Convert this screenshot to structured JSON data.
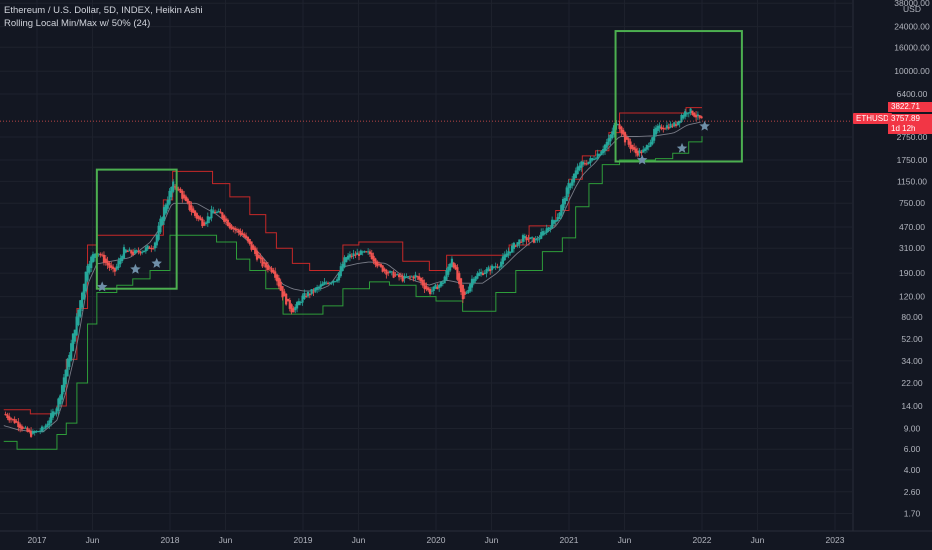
{
  "header": {
    "title": "Ethereum / U.S. Dollar, 5D, INDEX, Heikin Ashi",
    "indicator": "Rolling Local Min/Max w/ 50% (24)"
  },
  "price_axis": {
    "currency": "USD",
    "symbol_badge": "ETHUSD",
    "last_price": "3822.71",
    "current_price": "3757.89",
    "countdown": "1d 12h",
    "badge_color": "#f23645"
  },
  "colors": {
    "background": "#131722",
    "up_candle": "#26a69a",
    "down_candle": "#ef5350",
    "max_line": "#c62828",
    "min_line": "#2e9d3a",
    "mid_line": "#787b86",
    "box": "#4caf50",
    "star": "#6f8fa8"
  },
  "chart_data": {
    "type": "candlestick",
    "symbol": "ETHUSD",
    "interval": "5D",
    "scale": "log",
    "y_ticks": [
      1.7,
      2.6,
      4.0,
      6.0,
      9.0,
      14.0,
      22.0,
      34.0,
      52.0,
      80.0,
      120.0,
      190.0,
      310.0,
      470.0,
      750.0,
      1150.0,
      1750.0,
      2750.0,
      6400.0,
      10000.0,
      16000.0,
      24000.0,
      38000.0
    ],
    "y_tick_labels": [
      "1.70",
      "2.60",
      "4.00",
      "6.00",
      "9.00",
      "14.00",
      "22.00",
      "34.00",
      "52.00",
      "80.00",
      "120.00",
      "190.00",
      "310.00",
      "470.00",
      "750.00",
      "1150.00",
      "1750.00",
      "2750.00",
      "6400.00",
      "10000.00",
      "16000.00",
      "24000.00",
      "38000.00"
    ],
    "x_ticks": [
      "2017",
      "Jun",
      "2018",
      "Jun",
      "2019",
      "Jun",
      "2020",
      "Jun",
      "2021",
      "Jun",
      "2022",
      "Jun",
      "2023"
    ],
    "x_tick_dates": [
      2017.0,
      2017.417,
      2018.0,
      2018.417,
      2019.0,
      2019.417,
      2020.0,
      2020.417,
      2021.0,
      2021.417,
      2022.0,
      2022.417,
      2023.0
    ],
    "price_anchors": [
      [
        2016.75,
        12
      ],
      [
        2016.85,
        10
      ],
      [
        2016.95,
        8
      ],
      [
        2017.05,
        9
      ],
      [
        2017.15,
        14
      ],
      [
        2017.22,
        30
      ],
      [
        2017.3,
        80
      ],
      [
        2017.38,
        230
      ],
      [
        2017.45,
        300
      ],
      [
        2017.52,
        230
      ],
      [
        2017.58,
        190
      ],
      [
        2017.65,
        300
      ],
      [
        2017.72,
        280
      ],
      [
        2017.8,
        300
      ],
      [
        2017.88,
        330
      ],
      [
        2017.95,
        650
      ],
      [
        2018.02,
        1100
      ],
      [
        2018.07,
        950
      ],
      [
        2018.12,
        750
      ],
      [
        2018.18,
        600
      ],
      [
        2018.25,
        500
      ],
      [
        2018.32,
        650
      ],
      [
        2018.38,
        600
      ],
      [
        2018.45,
        480
      ],
      [
        2018.55,
        400
      ],
      [
        2018.62,
        300
      ],
      [
        2018.7,
        220
      ],
      [
        2018.78,
        200
      ],
      [
        2018.85,
        120
      ],
      [
        2018.92,
        90
      ],
      [
        2019.0,
        120
      ],
      [
        2019.08,
        135
      ],
      [
        2019.18,
        160
      ],
      [
        2019.25,
        170
      ],
      [
        2019.32,
        260
      ],
      [
        2019.42,
        280
      ],
      [
        2019.5,
        280
      ],
      [
        2019.58,
        210
      ],
      [
        2019.65,
        190
      ],
      [
        2019.75,
        170
      ],
      [
        2019.85,
        180
      ],
      [
        2019.95,
        130
      ],
      [
        2020.05,
        160
      ],
      [
        2020.12,
        260
      ],
      [
        2020.2,
        110
      ],
      [
        2020.28,
        180
      ],
      [
        2020.38,
        200
      ],
      [
        2020.48,
        230
      ],
      [
        2020.55,
        300
      ],
      [
        2020.65,
        380
      ],
      [
        2020.75,
        360
      ],
      [
        2020.85,
        480
      ],
      [
        2020.92,
        600
      ],
      [
        2021.0,
        1100
      ],
      [
        2021.08,
        1600
      ],
      [
        2021.15,
        1700
      ],
      [
        2021.22,
        2000
      ],
      [
        2021.3,
        2600
      ],
      [
        2021.36,
        3900
      ],
      [
        2021.42,
        2600
      ],
      [
        2021.5,
        2000
      ],
      [
        2021.57,
        2100
      ],
      [
        2021.65,
        3200
      ],
      [
        2021.72,
        3400
      ],
      [
        2021.8,
        3500
      ],
      [
        2021.85,
        4300
      ],
      [
        2021.9,
        4700
      ],
      [
        2021.95,
        4200
      ],
      [
        2022.0,
        3800
      ]
    ],
    "rolling_max": [
      [
        2016.75,
        13
      ],
      [
        2016.85,
        13
      ],
      [
        2016.95,
        12
      ],
      [
        2017.05,
        12
      ],
      [
        2017.15,
        14
      ],
      [
        2017.22,
        35
      ],
      [
        2017.3,
        95
      ],
      [
        2017.38,
        330
      ],
      [
        2017.45,
        400
      ],
      [
        2017.7,
        400
      ],
      [
        2017.95,
        800
      ],
      [
        2018.02,
        1400
      ],
      [
        2018.2,
        1400
      ],
      [
        2018.32,
        1100
      ],
      [
        2018.45,
        850
      ],
      [
        2018.6,
        600
      ],
      [
        2018.72,
        420
      ],
      [
        2018.8,
        310
      ],
      [
        2018.92,
        230
      ],
      [
        2019.05,
        200
      ],
      [
        2019.2,
        200
      ],
      [
        2019.3,
        330
      ],
      [
        2019.42,
        350
      ],
      [
        2019.62,
        350
      ],
      [
        2019.75,
        240
      ],
      [
        2019.95,
        200
      ],
      [
        2020.08,
        270
      ],
      [
        2020.25,
        270
      ],
      [
        2020.45,
        270
      ],
      [
        2020.55,
        330
      ],
      [
        2020.7,
        480
      ],
      [
        2020.9,
        650
      ],
      [
        2021.0,
        1200
      ],
      [
        2021.1,
        1900
      ],
      [
        2021.2,
        2100
      ],
      [
        2021.3,
        3000
      ],
      [
        2021.38,
        4400
      ],
      [
        2021.55,
        4400
      ],
      [
        2021.8,
        4400
      ],
      [
        2021.88,
        4900
      ],
      [
        2022.0,
        4900
      ]
    ],
    "rolling_min": [
      [
        2016.75,
        7
      ],
      [
        2016.85,
        6
      ],
      [
        2017.05,
        6
      ],
      [
        2017.15,
        8
      ],
      [
        2017.22,
        10
      ],
      [
        2017.3,
        22
      ],
      [
        2017.38,
        70
      ],
      [
        2017.45,
        130
      ],
      [
        2017.6,
        150
      ],
      [
        2017.72,
        170
      ],
      [
        2017.85,
        200
      ],
      [
        2018.0,
        400
      ],
      [
        2018.2,
        400
      ],
      [
        2018.35,
        350
      ],
      [
        2018.5,
        250
      ],
      [
        2018.6,
        200
      ],
      [
        2018.72,
        140
      ],
      [
        2018.85,
        85
      ],
      [
        2019.0,
        85
      ],
      [
        2019.15,
        100
      ],
      [
        2019.3,
        140
      ],
      [
        2019.5,
        160
      ],
      [
        2019.65,
        150
      ],
      [
        2019.85,
        120
      ],
      [
        2020.0,
        110
      ],
      [
        2020.2,
        90
      ],
      [
        2020.35,
        90
      ],
      [
        2020.45,
        130
      ],
      [
        2020.6,
        200
      ],
      [
        2020.8,
        290
      ],
      [
        2020.95,
        380
      ],
      [
        2021.05,
        700
      ],
      [
        2021.15,
        1100
      ],
      [
        2021.25,
        1600
      ],
      [
        2021.38,
        1750
      ],
      [
        2021.5,
        1750
      ],
      [
        2021.65,
        1800
      ],
      [
        2021.78,
        2000
      ],
      [
        2021.9,
        2500
      ],
      [
        2022.0,
        2800
      ]
    ],
    "boxes": [
      {
        "x1": 2017.45,
        "x2": 2018.05,
        "y1": 140,
        "y2": 1450
      },
      {
        "x1": 2021.35,
        "x2": 2022.3,
        "y1": 1700,
        "y2": 22000
      }
    ],
    "stars": [
      {
        "x": 2017.49,
        "y": 145
      },
      {
        "x": 2017.74,
        "y": 205
      },
      {
        "x": 2017.9,
        "y": 230
      },
      {
        "x": 2021.55,
        "y": 1750
      },
      {
        "x": 2021.85,
        "y": 2200
      },
      {
        "x": 2022.02,
        "y": 3400
      }
    ],
    "last_price_level": 3822.71,
    "current_price_level": 3757.89
  }
}
